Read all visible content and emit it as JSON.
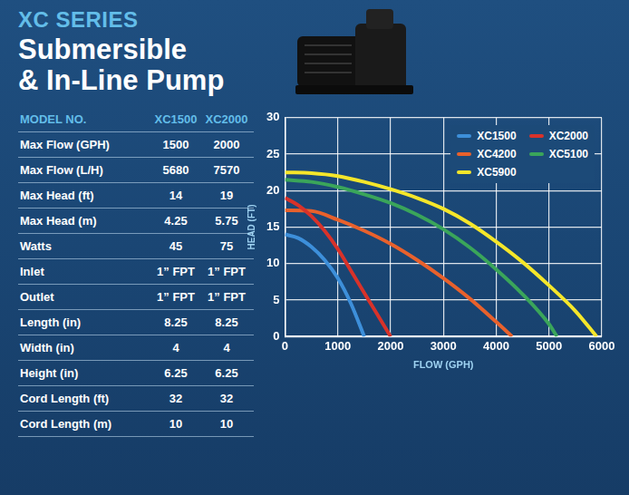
{
  "header": {
    "series_label": "XC SERIES",
    "title_lines": [
      "Submersible",
      "& In-Line Pump"
    ]
  },
  "table": {
    "columns": [
      "MODEL NO.",
      "XC1500",
      "XC2000"
    ],
    "rows": [
      [
        "Max Flow (GPH)",
        "1500",
        "2000"
      ],
      [
        "Max Flow (L/H)",
        "5680",
        "7570"
      ],
      [
        "Max Head (ft)",
        "14",
        "19"
      ],
      [
        "Max Head (m)",
        "4.25",
        "5.75"
      ],
      [
        "Watts",
        "45",
        "75"
      ],
      [
        "Inlet",
        "1” FPT",
        "1” FPT"
      ],
      [
        "Outlet",
        "1” FPT",
        "1” FPT"
      ],
      [
        "Length (in)",
        "8.25",
        "8.25"
      ],
      [
        "Width (in)",
        "4",
        "4"
      ],
      [
        "Height (in)",
        "6.25",
        "6.25"
      ],
      [
        "Cord Length (ft)",
        "32",
        "32"
      ],
      [
        "Cord Length (m)",
        "10",
        "10"
      ]
    ]
  },
  "chart_data": {
    "type": "line",
    "x_label": "FLOW (GPH)",
    "y_label": "HEAD (FT)",
    "xlim": [
      0,
      6000
    ],
    "xticks": [
      0,
      1000,
      2000,
      3000,
      4000,
      5000,
      6000
    ],
    "ylim": [
      0,
      30
    ],
    "yticks": [
      0,
      5,
      10,
      15,
      20,
      25,
      30
    ],
    "grid": true,
    "legend": "top-right",
    "series": [
      {
        "name": "XC1500",
        "color": "#3d8fda",
        "x": [
          0,
          250,
          500,
          750,
          1000,
          1250,
          1500
        ],
        "values": [
          14,
          13.5,
          12.3,
          10.5,
          8,
          4.5,
          0
        ]
      },
      {
        "name": "XC2000",
        "color": "#d8322a",
        "x": [
          0,
          250,
          500,
          750,
          1000,
          1250,
          1500,
          1750,
          2000
        ],
        "values": [
          19,
          18,
          16.5,
          14.5,
          12,
          9,
          6,
          3,
          0
        ]
      },
      {
        "name": "XC4200",
        "color": "#e8612c",
        "x": [
          0,
          500,
          1000,
          1500,
          2000,
          2500,
          3000,
          3500,
          4000,
          4300
        ],
        "values": [
          17.3,
          17.2,
          16,
          14.5,
          12.7,
          10.5,
          8,
          5.2,
          2,
          0
        ]
      },
      {
        "name": "XC5100",
        "color": "#3aa55a",
        "x": [
          0,
          500,
          1000,
          1500,
          2000,
          2500,
          3000,
          3500,
          4000,
          4500,
          5000,
          5150
        ],
        "values": [
          21.5,
          21.2,
          20.5,
          19.5,
          18.3,
          16.7,
          14.7,
          12.2,
          9.2,
          5.8,
          1.7,
          0
        ]
      },
      {
        "name": "XC5900",
        "color": "#f5e62a",
        "x": [
          0,
          500,
          1000,
          1500,
          2000,
          2500,
          3000,
          3500,
          4000,
          4500,
          5000,
          5500,
          5900
        ],
        "values": [
          22.5,
          22.4,
          22,
          21.2,
          20.2,
          19,
          17.5,
          15.5,
          13,
          10.2,
          7,
          3.5,
          0
        ]
      }
    ]
  }
}
